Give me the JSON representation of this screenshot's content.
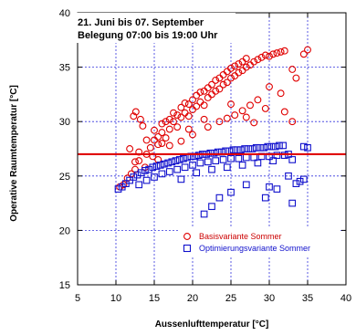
{
  "chart_data": {
    "type": "scatter",
    "xlabel": "Aussenlufttemperatur [°C]",
    "ylabel": "Operative Raumtemperatur [°C]",
    "xlim": [
      5,
      40
    ],
    "ylim": [
      15,
      40
    ],
    "xticks": [
      "5",
      "10",
      "15",
      "20",
      "25",
      "30",
      "35",
      "40"
    ],
    "yticks": [
      "15",
      "20",
      "25",
      "30",
      "35",
      "40"
    ],
    "grid": true,
    "annotation_lines": [
      "21. Juni bis 07. September",
      "Belegung 07:00 bis 19:00 Uhr"
    ],
    "reference_line": {
      "y": 27,
      "color": "#e00000"
    },
    "legend_position": "bottom-right",
    "series": [
      {
        "name": "Basisvariante Sommer",
        "marker": "circle",
        "color": "#e00000",
        "points": [
          [
            10.5,
            24.0
          ],
          [
            11.0,
            24.2
          ],
          [
            11.5,
            24.8
          ],
          [
            12.0,
            25.2
          ],
          [
            12.5,
            25.6
          ],
          [
            12.5,
            26.3
          ],
          [
            13.0,
            26.4
          ],
          [
            13.0,
            27.2
          ],
          [
            12.3,
            30.5
          ],
          [
            12.6,
            30.9
          ],
          [
            13.2,
            30.2
          ],
          [
            13.5,
            29.6
          ],
          [
            11.8,
            27.5
          ],
          [
            14.0,
            27.0
          ],
          [
            14.0,
            28.3
          ],
          [
            14.5,
            27.6
          ],
          [
            15.0,
            28.3
          ],
          [
            15.0,
            29.2
          ],
          [
            15.5,
            28.6
          ],
          [
            15.5,
            27.9
          ],
          [
            16.0,
            29.0
          ],
          [
            16.0,
            29.8
          ],
          [
            16.5,
            28.5
          ],
          [
            16.5,
            30.0
          ],
          [
            17.0,
            29.3
          ],
          [
            17.0,
            30.2
          ],
          [
            17.5,
            30.0
          ],
          [
            17.5,
            30.8
          ],
          [
            18.0,
            29.5
          ],
          [
            18.0,
            30.6
          ],
          [
            18.5,
            30.4
          ],
          [
            18.5,
            31.3
          ],
          [
            19.0,
            30.8
          ],
          [
            19.0,
            31.7
          ],
          [
            19.5,
            30.5
          ],
          [
            19.5,
            31.6
          ],
          [
            20.0,
            31.1
          ],
          [
            20.0,
            32.0
          ],
          [
            20.5,
            31.4
          ],
          [
            20.5,
            32.4
          ],
          [
            21.0,
            31.8
          ],
          [
            21.0,
            32.7
          ],
          [
            21.5,
            31.5
          ],
          [
            21.5,
            32.8
          ],
          [
            22.0,
            32.2
          ],
          [
            22.0,
            33.1
          ],
          [
            22.5,
            32.5
          ],
          [
            22.5,
            33.4
          ],
          [
            23.0,
            32.8
          ],
          [
            23.0,
            33.8
          ],
          [
            23.5,
            33.0
          ],
          [
            23.5,
            34.0
          ],
          [
            24.0,
            33.4
          ],
          [
            24.0,
            34.3
          ],
          [
            24.5,
            33.6
          ],
          [
            24.5,
            34.6
          ],
          [
            25.0,
            34.0
          ],
          [
            25.0,
            34.9
          ],
          [
            25.5,
            34.2
          ],
          [
            25.5,
            35.1
          ],
          [
            26.0,
            34.5
          ],
          [
            26.0,
            35.3
          ],
          [
            26.5,
            34.7
          ],
          [
            26.5,
            35.5
          ],
          [
            27.0,
            35.0
          ],
          [
            27.0,
            35.8
          ],
          [
            27.5,
            35.2
          ],
          [
            28.0,
            35.5
          ],
          [
            28.5,
            35.7
          ],
          [
            29.0,
            35.9
          ],
          [
            29.5,
            36.1
          ],
          [
            30.0,
            36.0
          ],
          [
            30.5,
            36.2
          ],
          [
            31.0,
            36.3
          ],
          [
            31.5,
            36.4
          ],
          [
            32.0,
            36.5
          ],
          [
            34.5,
            36.2
          ],
          [
            35.0,
            36.6
          ],
          [
            33.0,
            34.8
          ],
          [
            33.5,
            34.0
          ],
          [
            30.0,
            33.2
          ],
          [
            31.5,
            32.6
          ],
          [
            32.0,
            30.9
          ],
          [
            33.0,
            30.0
          ],
          [
            29.5,
            31.2
          ],
          [
            28.5,
            32.0
          ],
          [
            27.5,
            31.5
          ],
          [
            26.5,
            31.0
          ],
          [
            25.5,
            30.6
          ],
          [
            24.5,
            30.3
          ],
          [
            27.0,
            30.4
          ],
          [
            28.0,
            29.9
          ],
          [
            22.0,
            29.5
          ],
          [
            20.0,
            28.8
          ],
          [
            18.5,
            28.2
          ],
          [
            17.0,
            27.8
          ],
          [
            23.5,
            30.0
          ],
          [
            25.0,
            31.6
          ],
          [
            21.5,
            30.2
          ],
          [
            19.5,
            29.3
          ],
          [
            16.0,
            28.0
          ],
          [
            14.8,
            26.8
          ],
          [
            13.8,
            25.8
          ],
          [
            15.5,
            26.5
          ]
        ]
      },
      {
        "name": "Optimierungsvariante Sommer",
        "marker": "square",
        "color": "#1010cc",
        "points": [
          [
            10.3,
            23.8
          ],
          [
            10.8,
            24.0
          ],
          [
            11.3,
            24.3
          ],
          [
            11.8,
            24.6
          ],
          [
            12.3,
            24.9
          ],
          [
            12.8,
            25.1
          ],
          [
            13.3,
            25.3
          ],
          [
            13.8,
            25.5
          ],
          [
            14.3,
            25.6
          ],
          [
            14.8,
            25.8
          ],
          [
            15.3,
            25.9
          ],
          [
            15.8,
            26.0
          ],
          [
            16.3,
            26.1
          ],
          [
            16.8,
            26.2
          ],
          [
            17.3,
            26.3
          ],
          [
            17.8,
            26.4
          ],
          [
            18.3,
            26.5
          ],
          [
            18.8,
            26.6
          ],
          [
            19.3,
            26.7
          ],
          [
            19.8,
            26.8
          ],
          [
            20.3,
            26.8
          ],
          [
            20.8,
            26.9
          ],
          [
            21.3,
            27.0
          ],
          [
            21.8,
            27.0
          ],
          [
            22.3,
            27.1
          ],
          [
            22.8,
            27.1
          ],
          [
            23.3,
            27.2
          ],
          [
            23.8,
            27.2
          ],
          [
            24.3,
            27.3
          ],
          [
            24.8,
            27.3
          ],
          [
            25.3,
            27.4
          ],
          [
            25.8,
            27.4
          ],
          [
            26.3,
            27.4
          ],
          [
            26.8,
            27.5
          ],
          [
            27.3,
            27.5
          ],
          [
            27.8,
            27.5
          ],
          [
            28.3,
            27.6
          ],
          [
            28.8,
            27.6
          ],
          [
            29.3,
            27.6
          ],
          [
            29.8,
            27.7
          ],
          [
            30.3,
            27.7
          ],
          [
            30.8,
            27.7
          ],
          [
            31.3,
            27.8
          ],
          [
            31.8,
            27.8
          ],
          [
            34.5,
            27.7
          ],
          [
            35.0,
            27.6
          ],
          [
            32.5,
            27.0
          ],
          [
            33.0,
            26.5
          ],
          [
            13.0,
            24.2
          ],
          [
            14.0,
            24.6
          ],
          [
            15.0,
            24.9
          ],
          [
            16.0,
            25.2
          ],
          [
            17.0,
            25.4
          ],
          [
            18.0,
            25.6
          ],
          [
            19.0,
            25.8
          ],
          [
            20.0,
            26.0
          ],
          [
            21.0,
            26.2
          ],
          [
            22.0,
            26.3
          ],
          [
            23.0,
            26.4
          ],
          [
            24.0,
            26.5
          ],
          [
            25.0,
            26.6
          ],
          [
            26.0,
            26.6
          ],
          [
            27.0,
            26.7
          ],
          [
            28.0,
            26.7
          ],
          [
            29.0,
            26.8
          ],
          [
            30.0,
            26.8
          ],
          [
            31.0,
            26.9
          ],
          [
            32.0,
            26.9
          ],
          [
            18.5,
            24.7
          ],
          [
            20.5,
            25.3
          ],
          [
            22.5,
            25.6
          ],
          [
            24.5,
            25.8
          ],
          [
            26.5,
            26.0
          ],
          [
            28.5,
            26.2
          ],
          [
            30.5,
            26.4
          ],
          [
            32.5,
            25.0
          ],
          [
            33.5,
            24.3
          ],
          [
            34.5,
            24.7
          ],
          [
            30.0,
            24.0
          ],
          [
            27.0,
            24.2
          ],
          [
            25.0,
            23.5
          ],
          [
            23.5,
            23.0
          ],
          [
            22.5,
            22.2
          ],
          [
            21.5,
            21.5
          ],
          [
            29.5,
            23.0
          ],
          [
            31.0,
            23.8
          ],
          [
            33.0,
            22.5
          ],
          [
            34.0,
            24.5
          ]
        ]
      }
    ]
  }
}
